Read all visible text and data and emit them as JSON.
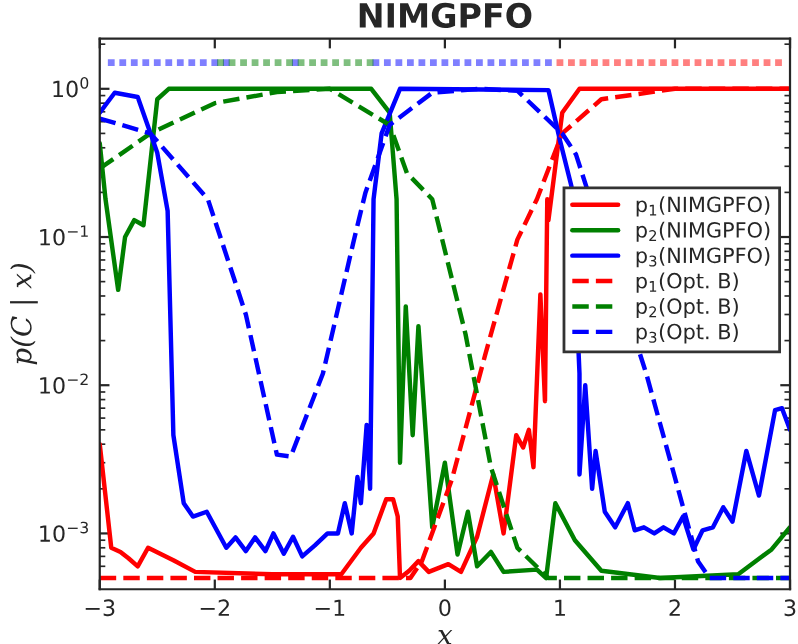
{
  "chart_data": {
    "type": "line",
    "title": "NIMGPFO",
    "xlabel": "x",
    "ylabel": "p(C | x)",
    "xlim": [
      -3,
      3
    ],
    "xticks": [
      {
        "value": -3,
        "label": "−3"
      },
      {
        "value": -2,
        "label": "−2"
      },
      {
        "value": -1,
        "label": "−1"
      },
      0,
      1,
      2,
      3
    ],
    "ylim": [
      0.00042,
      2.18
    ],
    "yticks": [
      {
        "value": 0.001,
        "label": "10$^{−3}$"
      },
      {
        "value": 0.01,
        "label": "10$^{−2}$"
      },
      {
        "value": 0.1,
        "label": "10$^{−1}$"
      },
      {
        "value": 1,
        "label": "10$^{0}$"
      }
    ],
    "log": true,
    "grid": false,
    "legend": "right",
    "series": [
      {
        "name": "p$_{1}$(NIMGPFO)",
        "color": "#ff0000",
        "line_style": "solid",
        "x": [
          -3,
          -2.9,
          -2.82,
          -2.75,
          -2.67,
          -2.58,
          -2.36,
          -2.17,
          -1.5,
          -0.9,
          -0.73,
          -0.62,
          -0.51,
          -0.45,
          -0.41,
          -0.39,
          -0.31,
          -0.23,
          -0.14,
          0.03,
          0.14,
          0.28,
          0.42,
          0.51,
          0.56,
          0.62,
          0.68,
          0.73,
          0.77,
          0.83,
          0.87,
          0.89,
          0.9,
          1.02,
          1.17,
          2,
          3
        ],
        "values": [
          0.004,
          0.0008,
          0.00075,
          0.00068,
          0.0006,
          0.0008,
          0.00066,
          0.00055,
          0.00053,
          0.00053,
          0.0008,
          0.001,
          0.0017,
          0.0017,
          0.0013,
          0.0005,
          0.00056,
          0.00065,
          0.00055,
          0.00062,
          0.00055,
          0.00095,
          0.0025,
          0.001,
          0.002,
          0.0046,
          0.0038,
          0.005,
          0.0028,
          0.041,
          0.0078,
          0.18,
          0.13,
          0.69,
          1.0,
          1.0,
          1.0
        ]
      },
      {
        "name": "p$_{2}$(NIMGPFO)",
        "color": "#008000",
        "line_style": "solid",
        "x": [
          -3,
          -2.95,
          -2.84,
          -2.78,
          -2.7,
          -2.62,
          -2.5,
          -2.4,
          -1.5,
          -0.64,
          -0.48,
          -0.42,
          -0.39,
          -0.34,
          -0.28,
          -0.23,
          -0.11,
          0.0,
          0.11,
          0.2,
          0.28,
          0.4,
          0.51,
          0.8,
          0.88,
          0.96,
          1.13,
          1.36,
          1.87,
          2.55,
          2.84,
          3.0
        ],
        "values": [
          0.43,
          0.18,
          0.044,
          0.1,
          0.13,
          0.12,
          0.85,
          1.0,
          1.0,
          1.0,
          0.69,
          0.18,
          0.003,
          0.034,
          0.0046,
          0.025,
          0.0011,
          0.003,
          0.00072,
          0.0014,
          0.0006,
          0.00075,
          0.00055,
          0.00057,
          0.0005,
          0.0016,
          0.0009,
          0.00056,
          0.0005,
          0.00053,
          0.00078,
          0.0011
        ]
      },
      {
        "name": "p$_{3}$(NIMGPFO)",
        "color": "#0000ff",
        "line_style": "solid",
        "x": [
          -3,
          -2.87,
          -2.67,
          -2.5,
          -2.41,
          -2.36,
          -2.27,
          -2.19,
          -2.07,
          -1.9,
          -1.82,
          -1.73,
          -1.65,
          -1.56,
          -1.49,
          -1.4,
          -1.32,
          -1.24,
          -1.13,
          -1.02,
          -0.93,
          -0.87,
          -0.81,
          -0.76,
          -0.73,
          -0.68,
          -0.65,
          -0.62,
          -0.55,
          -0.39,
          0.9,
          1.0,
          1.1,
          1.17,
          1.17,
          1.22,
          1.28,
          1.31,
          1.39,
          1.48,
          1.59,
          1.65,
          1.73,
          1.82,
          1.9,
          1.99,
          2.07,
          2.16,
          2.24,
          2.33,
          2.42,
          2.5,
          2.62,
          2.73,
          2.87,
          2.93,
          3.0
        ],
        "values": [
          0.69,
          0.94,
          0.88,
          0.37,
          0.15,
          0.0046,
          0.0016,
          0.0013,
          0.0014,
          0.0008,
          0.00094,
          0.00076,
          0.00094,
          0.00076,
          0.001,
          0.00073,
          0.00095,
          0.0007,
          0.00083,
          0.001,
          0.001,
          0.0016,
          0.001,
          0.0024,
          0.0016,
          0.0054,
          0.002,
          0.18,
          0.5,
          1.0,
          0.98,
          0.45,
          0.22,
          0.012,
          0.0025,
          0.01,
          0.002,
          0.0036,
          0.0014,
          0.0011,
          0.0016,
          0.00105,
          0.0011,
          0.001,
          0.0011,
          0.001,
          0.0013,
          0.00078,
          0.00105,
          0.0011,
          0.0015,
          0.0012,
          0.0036,
          0.0018,
          0.0068,
          0.007,
          0.005
        ]
      },
      {
        "name": "p$_{1}$(Opt. B)",
        "color": "#ff0000",
        "line_style": "dashed",
        "x": [
          -3,
          -0.3,
          -0.2,
          0.06,
          0.35,
          0.63,
          0.8,
          1.02,
          1.36,
          2,
          3
        ],
        "values": [
          0.0005,
          0.0005,
          0.00065,
          0.0023,
          0.016,
          0.096,
          0.18,
          0.5,
          0.85,
          1.0,
          1.0
        ]
      },
      {
        "name": "p$_{2}$(Opt. B)",
        "color": "#008000",
        "line_style": "dashed",
        "x": [
          -3,
          -2.56,
          -2.0,
          -1.46,
          -1.0,
          -0.48,
          -0.33,
          -0.11,
          0.18,
          0.4,
          0.63,
          0.9,
          3
        ],
        "values": [
          0.29,
          0.5,
          0.8,
          0.95,
          1.0,
          0.57,
          0.27,
          0.18,
          0.022,
          0.0028,
          0.0008,
          0.0005,
          0.0005
        ]
      },
      {
        "name": "p$_{3}$(Opt. B)",
        "color": "#0000ff",
        "line_style": "dashed",
        "x": [
          -3,
          -2.56,
          -2.06,
          -1.73,
          -1.46,
          -1.34,
          -1.06,
          -0.79,
          -0.69,
          -0.48,
          -0.11,
          0.3,
          0.63,
          1.02,
          1.14,
          1.75,
          2.2,
          2.3,
          3
        ],
        "values": [
          0.63,
          0.5,
          0.18,
          0.03,
          0.0034,
          0.0033,
          0.012,
          0.096,
          0.2,
          0.57,
          0.94,
          1.0,
          0.97,
          0.5,
          0.36,
          0.012,
          0.00065,
          0.0005,
          0.0005
        ]
      },
      {
        "type": "scatter",
        "marker": "square",
        "color": "#0000ff",
        "x": [
          -2.9,
          -2.8,
          -2.7,
          -2.6,
          -2.5,
          -2.4,
          -2.3,
          -2.2,
          -2.1,
          -2.0,
          -1.9,
          -1.3,
          -0.6,
          -0.5,
          -0.4,
          -0.3,
          -0.2,
          -0.1,
          0.0,
          0.1,
          0.2,
          0.3,
          0.4,
          0.5,
          0.6,
          0.7,
          0.8,
          0.9
        ],
        "values": [
          1.5,
          1.5,
          1.5,
          1.5,
          1.5,
          1.5,
          1.5,
          1.5,
          1.5,
          1.5,
          1.5,
          1.5,
          1.5,
          1.5,
          1.5,
          1.5,
          1.5,
          1.5,
          1.5,
          1.5,
          1.5,
          1.5,
          1.5,
          1.5,
          1.5,
          1.5,
          1.5,
          1.5
        ]
      },
      {
        "type": "scatter",
        "marker": "square",
        "color": "#008000",
        "x": [
          -1.95,
          -1.85,
          -1.75,
          -1.65,
          -1.55,
          -1.45,
          -1.35,
          -1.25,
          -1.15,
          -1.05,
          -0.95,
          -0.85,
          -0.75,
          -0.65
        ],
        "values": [
          1.5,
          1.5,
          1.5,
          1.5,
          1.5,
          1.5,
          1.5,
          1.5,
          1.5,
          1.5,
          1.5,
          1.5,
          1.5,
          1.5
        ]
      },
      {
        "type": "scatter",
        "marker": "square",
        "color": "#ff0000",
        "x": [
          1.0,
          1.1,
          1.2,
          1.3,
          1.4,
          1.5,
          1.6,
          1.7,
          1.8,
          1.9,
          2.0,
          2.1,
          2.2,
          2.3,
          2.4,
          2.5,
          2.6,
          2.7,
          2.8,
          2.9
        ],
        "values": [
          1.5,
          1.5,
          1.5,
          1.5,
          1.5,
          1.5,
          1.5,
          1.5,
          1.5,
          1.5,
          1.5,
          1.5,
          1.5,
          1.5,
          1.5,
          1.5,
          1.5,
          1.5,
          1.5,
          1.5
        ]
      }
    ]
  }
}
